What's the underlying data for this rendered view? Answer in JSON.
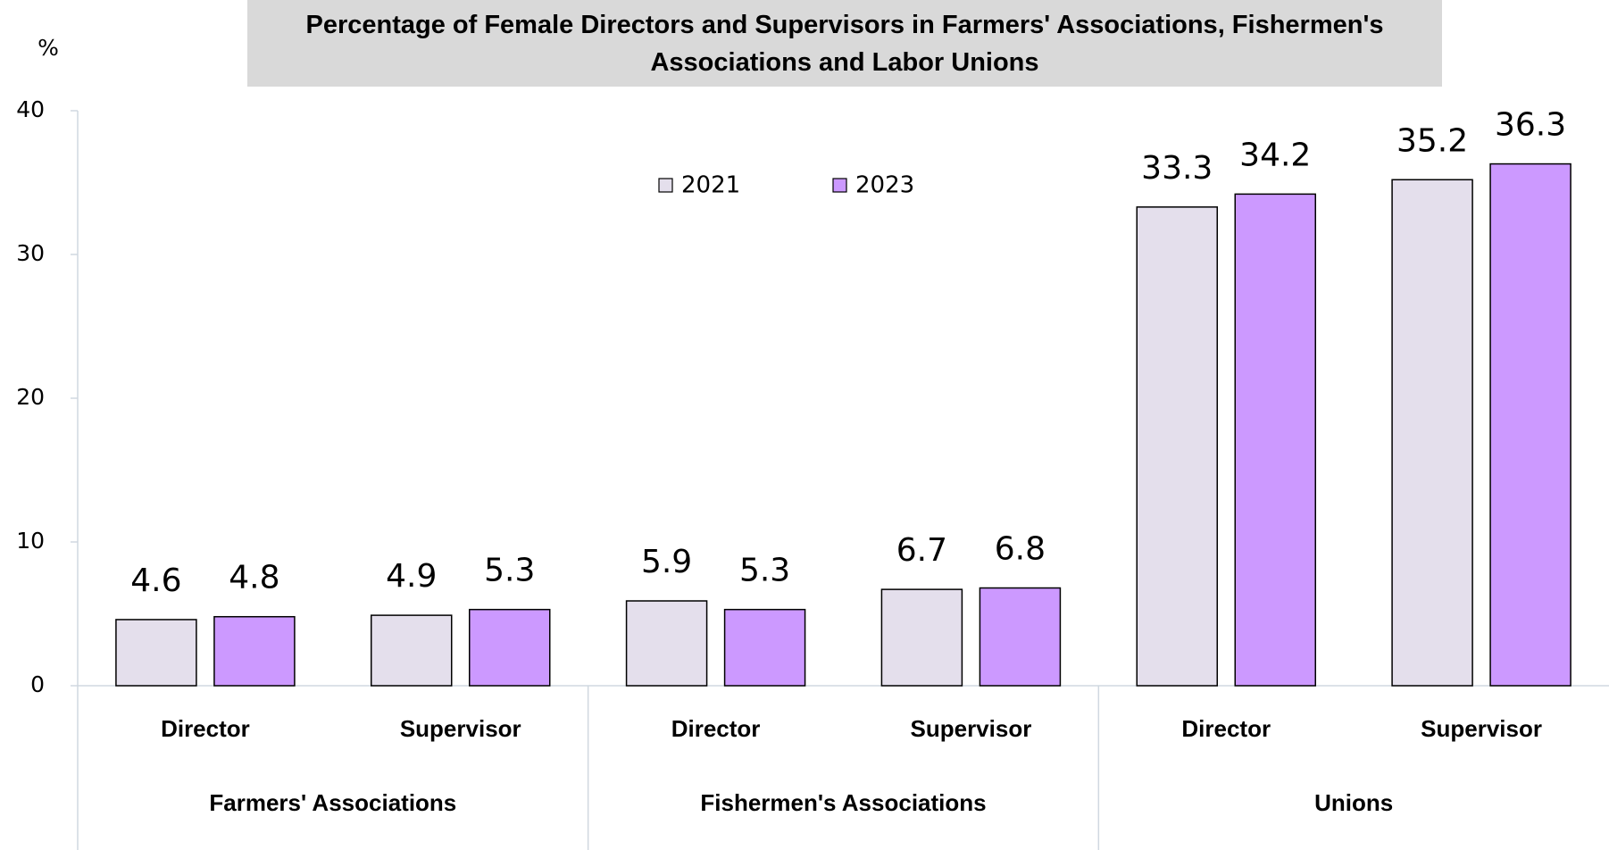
{
  "chart_data": {
    "type": "bar",
    "title": "Percentage of Female Directors and Supervisors in Farmers' Associations, Fishermen's Associations and Labor Unions",
    "y_label": "%",
    "categories": [
      "Director",
      "Supervisor",
      "Director",
      "Supervisor",
      "Director",
      "Supervisor"
    ],
    "groups": [
      "Farmers' Associations",
      "Fishermen's Associations",
      "Unions"
    ],
    "series": [
      {
        "name": "2021",
        "color": "#e4dfec",
        "values": [
          4.6,
          4.9,
          5.9,
          6.7,
          33.3,
          35.2
        ]
      },
      {
        "name": "2023",
        "color": "#cc99ff",
        "values": [
          4.8,
          5.3,
          5.3,
          6.8,
          34.2,
          36.3
        ]
      }
    ],
    "ylim": [
      0,
      40
    ],
    "yticks": [
      0,
      10,
      20,
      30,
      40
    ]
  }
}
